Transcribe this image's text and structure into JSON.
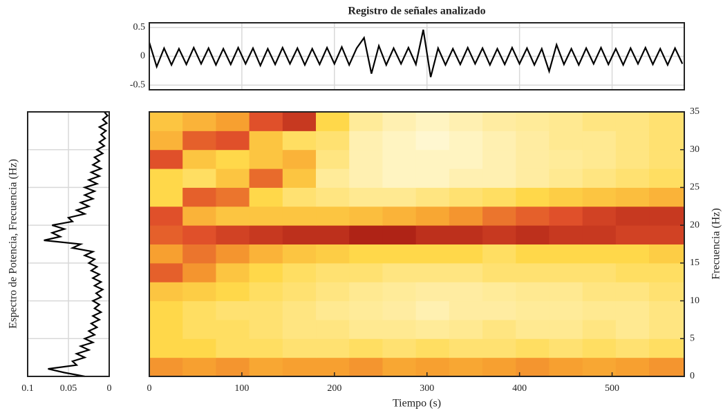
{
  "chart_data": [
    {
      "type": "line",
      "title": "Registro de señales analizado",
      "x": [
        0,
        8,
        16,
        24,
        32,
        40,
        48,
        56,
        64,
        72,
        80,
        88,
        96,
        104,
        112,
        120,
        128,
        136,
        144,
        152,
        160,
        168,
        176,
        184,
        192,
        200,
        208,
        216,
        224,
        232,
        240,
        248,
        256,
        264,
        272,
        280,
        288,
        296,
        304,
        312,
        320,
        328,
        336,
        344,
        352,
        360,
        368,
        376,
        384,
        392,
        400,
        408,
        416,
        424,
        432,
        440,
        448,
        456,
        464,
        472,
        480,
        488,
        496,
        504,
        512,
        520,
        528,
        536,
        544,
        552,
        560,
        568,
        576
      ],
      "values": [
        0.24,
        -0.18,
        0.14,
        -0.15,
        0.13,
        -0.14,
        0.15,
        -0.13,
        0.14,
        -0.15,
        0.13,
        -0.14,
        0.15,
        -0.13,
        0.14,
        -0.16,
        0.13,
        -0.14,
        0.15,
        -0.13,
        0.14,
        -0.15,
        0.13,
        -0.14,
        0.15,
        -0.13,
        0.16,
        -0.15,
        0.14,
        0.32,
        -0.3,
        0.18,
        -0.15,
        0.14,
        -0.13,
        0.15,
        -0.14,
        0.46,
        -0.36,
        0.14,
        -0.15,
        0.13,
        -0.14,
        0.15,
        -0.13,
        0.14,
        -0.15,
        0.13,
        -0.14,
        0.15,
        -0.13,
        0.14,
        -0.15,
        0.13,
        -0.26,
        0.2,
        -0.14,
        0.13,
        -0.15,
        0.14,
        -0.13,
        0.15,
        -0.14,
        0.13,
        -0.15,
        0.14,
        -0.13,
        0.15,
        -0.14,
        0.13,
        -0.15,
        0.14,
        -0.13
      ],
      "color": "#000000",
      "xlim": [
        0,
        578
      ],
      "xticks": [
        0,
        100,
        200,
        300,
        400,
        500
      ],
      "ylim": [
        -0.58,
        0.58
      ],
      "yticks": [
        -0.5,
        0,
        0.5
      ],
      "grid": true
    },
    {
      "type": "heatmap",
      "xlabel": "Tiempo (s)",
      "ylabel": "Frecuencia (Hz)",
      "colormap": "hot",
      "x_edges": [
        0,
        36,
        72,
        108,
        144,
        180,
        216,
        252,
        288,
        324,
        360,
        396,
        432,
        468,
        504,
        540,
        578
      ],
      "y_edges": [
        0,
        2.5,
        5,
        7.5,
        10,
        12.5,
        15,
        17.5,
        20,
        22.5,
        25,
        27.5,
        30,
        32.5,
        35
      ],
      "z": [
        [
          0.62,
          0.6,
          0.62,
          0.58,
          0.6,
          0.6,
          0.62,
          0.58,
          0.6,
          0.58,
          0.6,
          0.62,
          0.6,
          0.58,
          0.6,
          0.62
        ],
        [
          0.45,
          0.45,
          0.42,
          0.42,
          0.4,
          0.4,
          0.42,
          0.4,
          0.42,
          0.4,
          0.4,
          0.42,
          0.4,
          0.42,
          0.4,
          0.42
        ],
        [
          0.45,
          0.42,
          0.42,
          0.4,
          0.38,
          0.38,
          0.36,
          0.36,
          0.35,
          0.36,
          0.38,
          0.36,
          0.36,
          0.38,
          0.36,
          0.38
        ],
        [
          0.45,
          0.42,
          0.4,
          0.4,
          0.38,
          0.36,
          0.35,
          0.34,
          0.32,
          0.34,
          0.34,
          0.35,
          0.35,
          0.36,
          0.36,
          0.38
        ],
        [
          0.5,
          0.48,
          0.45,
          0.42,
          0.4,
          0.38,
          0.36,
          0.35,
          0.34,
          0.34,
          0.35,
          0.36,
          0.36,
          0.38,
          0.38,
          0.4
        ],
        [
          0.72,
          0.62,
          0.5,
          0.45,
          0.42,
          0.4,
          0.4,
          0.38,
          0.38,
          0.38,
          0.4,
          0.4,
          0.4,
          0.4,
          0.42,
          0.42
        ],
        [
          0.6,
          0.68,
          0.62,
          0.55,
          0.5,
          0.48,
          0.45,
          0.45,
          0.45,
          0.45,
          0.42,
          0.45,
          0.45,
          0.45,
          0.45,
          0.48
        ],
        [
          0.72,
          0.75,
          0.78,
          0.8,
          0.82,
          0.82,
          0.85,
          0.85,
          0.82,
          0.82,
          0.8,
          0.82,
          0.8,
          0.8,
          0.78,
          0.78
        ],
        [
          0.75,
          0.55,
          0.5,
          0.5,
          0.5,
          0.5,
          0.52,
          0.55,
          0.58,
          0.62,
          0.68,
          0.72,
          0.75,
          0.78,
          0.8,
          0.8
        ],
        [
          0.45,
          0.72,
          0.68,
          0.45,
          0.4,
          0.38,
          0.36,
          0.36,
          0.38,
          0.4,
          0.42,
          0.45,
          0.48,
          0.5,
          0.52,
          0.55
        ],
        [
          0.45,
          0.42,
          0.5,
          0.7,
          0.5,
          0.35,
          0.32,
          0.3,
          0.3,
          0.32,
          0.32,
          0.34,
          0.36,
          0.38,
          0.4,
          0.42
        ],
        [
          0.75,
          0.5,
          0.45,
          0.5,
          0.55,
          0.38,
          0.32,
          0.3,
          0.3,
          0.3,
          0.32,
          0.34,
          0.35,
          0.36,
          0.38,
          0.4
        ],
        [
          0.55,
          0.72,
          0.75,
          0.5,
          0.42,
          0.4,
          0.32,
          0.3,
          0.28,
          0.3,
          0.32,
          0.34,
          0.36,
          0.36,
          0.38,
          0.4
        ],
        [
          0.5,
          0.55,
          0.6,
          0.75,
          0.8,
          0.45,
          0.35,
          0.32,
          0.3,
          0.32,
          0.34,
          0.35,
          0.36,
          0.38,
          0.38,
          0.4
        ]
      ],
      "xlim": [
        0,
        578
      ],
      "xticks": [
        0,
        100,
        200,
        300,
        400,
        500
      ],
      "ylim": [
        0,
        35
      ],
      "yticks": [
        0,
        5,
        10,
        15,
        20,
        25,
        30,
        35
      ]
    },
    {
      "type": "line",
      "ylabel": "Espectro de Potencia, Frecuencia (Hz)",
      "y": [
        0,
        0.5,
        1,
        1.5,
        2,
        2.5,
        3,
        3.5,
        4,
        4.5,
        5,
        5.5,
        6,
        6.5,
        7,
        7.5,
        8,
        8.5,
        9,
        9.5,
        10,
        10.5,
        11,
        11.5,
        12,
        12.5,
        13,
        13.5,
        14,
        14.5,
        15,
        15.5,
        16,
        16.5,
        17,
        17.5,
        18,
        18.5,
        19,
        19.5,
        20,
        20.5,
        21,
        21.5,
        22,
        22.5,
        23,
        23.5,
        24,
        24.5,
        25,
        25.5,
        26,
        26.5,
        27,
        27.5,
        28,
        28.5,
        29,
        29.5,
        30,
        30.5,
        31,
        31.5,
        32,
        32.5,
        33,
        33.5,
        34,
        34.5,
        35
      ],
      "values": [
        0.03,
        0.055,
        0.075,
        0.04,
        0.045,
        0.03,
        0.04,
        0.025,
        0.035,
        0.02,
        0.03,
        0.018,
        0.025,
        0.015,
        0.022,
        0.012,
        0.02,
        0.01,
        0.018,
        0.012,
        0.02,
        0.01,
        0.016,
        0.008,
        0.018,
        0.01,
        0.02,
        0.012,
        0.022,
        0.015,
        0.025,
        0.018,
        0.03,
        0.02,
        0.045,
        0.035,
        0.08,
        0.06,
        0.07,
        0.055,
        0.07,
        0.045,
        0.05,
        0.03,
        0.04,
        0.025,
        0.035,
        0.02,
        0.03,
        0.018,
        0.03,
        0.015,
        0.025,
        0.012,
        0.022,
        0.01,
        0.02,
        0.012,
        0.018,
        0.008,
        0.015,
        0.006,
        0.012,
        0.005,
        0.01,
        0.004,
        0.012,
        0.003,
        0.008,
        0.002,
        0.006
      ],
      "color": "#000000",
      "xlim": [
        0.1,
        0
      ],
      "xticks": [
        0.1,
        0.05,
        0
      ],
      "ylim": [
        0,
        35
      ],
      "yticks": [
        5,
        10,
        15,
        20,
        25,
        30
      ],
      "grid": true
    }
  ]
}
